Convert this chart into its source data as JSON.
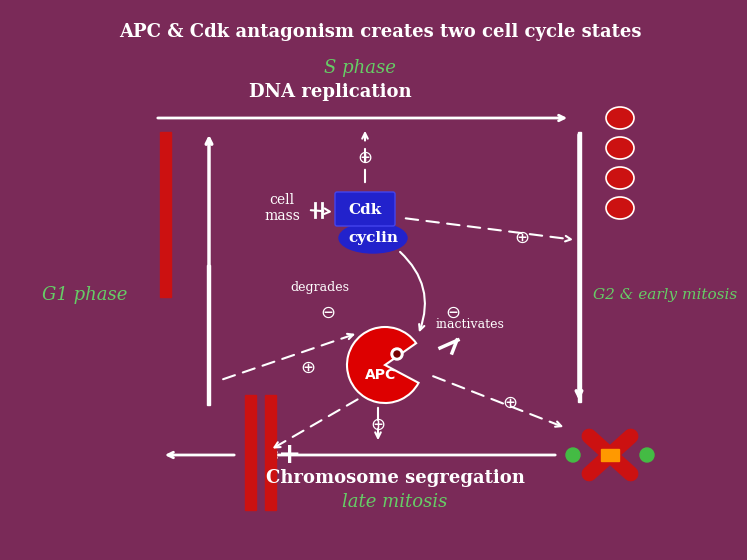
{
  "title": "APC & Cdk antagonism creates two cell cycle states",
  "bg_color": "#7A2A58",
  "white": "#FFFFFF",
  "green": "#66CC66",
  "red": "#CC1111",
  "blue": "#2222CC",
  "orange": "#FF9900",
  "chrome_green": "#44BB44",
  "s_phase": "S phase",
  "dna_rep": "DNA replication",
  "g1": "G1 phase",
  "g2": "G2 & early mitosis",
  "chrom_seg": "Chromosome segregation",
  "late_mit": "late mitosis",
  "cell_mass": "cell\nmass",
  "cdk": "Cdk",
  "cyclin": "cyclin",
  "apc": "APC",
  "degrades": "degrades",
  "inactivates": "inactivates"
}
